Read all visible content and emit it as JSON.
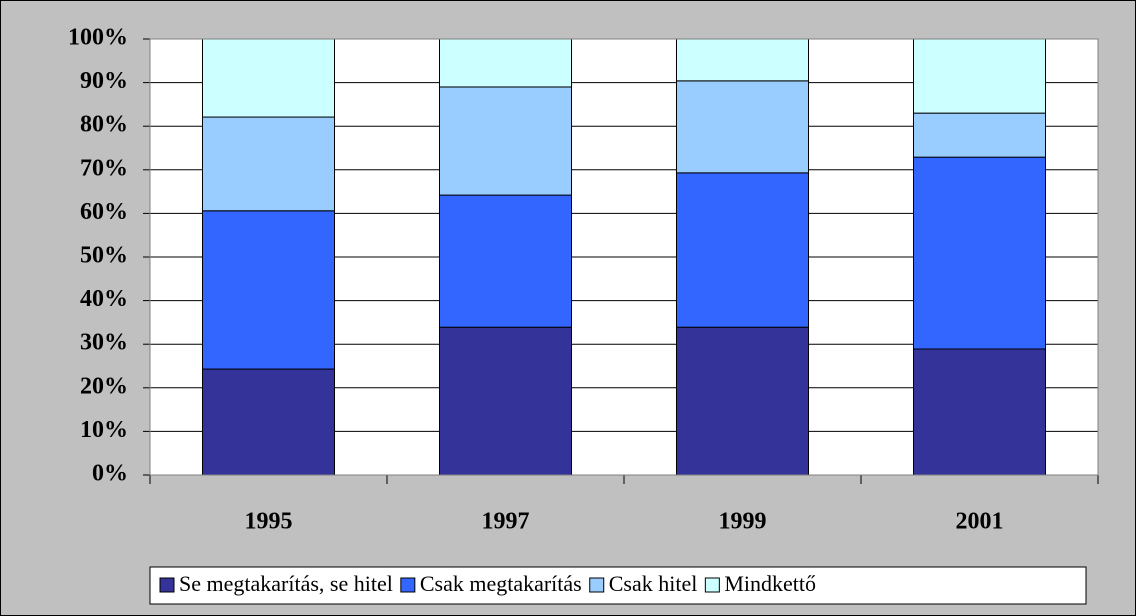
{
  "chart_data": {
    "type": "stacked_bar",
    "categories": [
      "1995",
      "1997",
      "1999",
      "2001"
    ],
    "series": [
      {
        "name": "Se megtakarítás, se hitel",
        "color": "#333399",
        "values": [
          24.3,
          33.9,
          33.9,
          28.9
        ]
      },
      {
        "name": "Csak megtakarítás",
        "color": "#3366ff",
        "values": [
          36.3,
          30.3,
          35.4,
          44.0
        ]
      },
      {
        "name": "Csak hitel",
        "color": "#99ccff",
        "values": [
          21.5,
          24.8,
          21.1,
          10.1
        ]
      },
      {
        "name": "Mindkettő",
        "color": "#ccffff",
        "values": [
          17.9,
          11.0,
          9.6,
          17.0
        ]
      }
    ],
    "ylim": [
      0,
      100
    ],
    "yticks": [
      {
        "value": 0,
        "label": "0%"
      },
      {
        "value": 10,
        "label": "10%"
      },
      {
        "value": 20,
        "label": "20%"
      },
      {
        "value": 30,
        "label": "30%"
      },
      {
        "value": 40,
        "label": "40%"
      },
      {
        "value": 50,
        "label": "50%"
      },
      {
        "value": 60,
        "label": "60%"
      },
      {
        "value": 70,
        "label": "70%"
      },
      {
        "value": 80,
        "label": "80%"
      },
      {
        "value": 90,
        "label": "90%"
      },
      {
        "value": 100,
        "label": "100%"
      }
    ],
    "grid": true,
    "legend": "bottom"
  }
}
